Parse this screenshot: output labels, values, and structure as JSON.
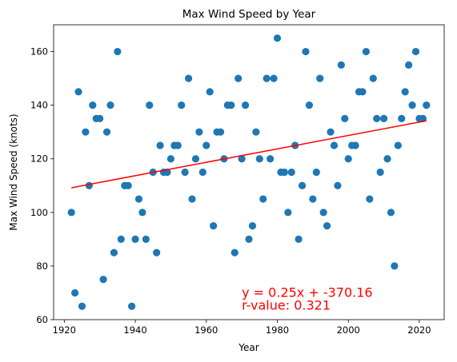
{
  "chart_data": {
    "type": "scatter",
    "title": "Max Wind Speed by Year",
    "xlabel": "Year",
    "ylabel": "Max Wind Speed (knots)",
    "xlim": [
      1917,
      2027
    ],
    "ylim": [
      60,
      170
    ],
    "xticks": [
      1920,
      1940,
      1960,
      1980,
      2000,
      2020
    ],
    "yticks": [
      60,
      80,
      100,
      120,
      140,
      160
    ],
    "grid": false,
    "point_color": "#1f77b4",
    "line_color": "#ff0000",
    "points": [
      [
        1922,
        100
      ],
      [
        1923,
        70
      ],
      [
        1924,
        145
      ],
      [
        1925,
        65
      ],
      [
        1926,
        130
      ],
      [
        1927,
        110
      ],
      [
        1928,
        140
      ],
      [
        1929,
        135
      ],
      [
        1930,
        135
      ],
      [
        1931,
        75
      ],
      [
        1932,
        130
      ],
      [
        1933,
        140
      ],
      [
        1934,
        85
      ],
      [
        1935,
        160
      ],
      [
        1936,
        90
      ],
      [
        1937,
        110
      ],
      [
        1938,
        110
      ],
      [
        1939,
        65
      ],
      [
        1940,
        90
      ],
      [
        1941,
        105
      ],
      [
        1942,
        100
      ],
      [
        1943,
        90
      ],
      [
        1944,
        140
      ],
      [
        1945,
        115
      ],
      [
        1946,
        85
      ],
      [
        1947,
        125
      ],
      [
        1948,
        115
      ],
      [
        1949,
        115
      ],
      [
        1950,
        120
      ],
      [
        1951,
        125
      ],
      [
        1952,
        125
      ],
      [
        1953,
        140
      ],
      [
        1954,
        115
      ],
      [
        1955,
        150
      ],
      [
        1956,
        105
      ],
      [
        1957,
        120
      ],
      [
        1958,
        130
      ],
      [
        1959,
        115
      ],
      [
        1960,
        125
      ],
      [
        1961,
        145
      ],
      [
        1962,
        95
      ],
      [
        1963,
        130
      ],
      [
        1964,
        130
      ],
      [
        1965,
        120
      ],
      [
        1966,
        140
      ],
      [
        1967,
        140
      ],
      [
        1968,
        85
      ],
      [
        1969,
        150
      ],
      [
        1970,
        120
      ],
      [
        1971,
        140
      ],
      [
        1972,
        90
      ],
      [
        1973,
        95
      ],
      [
        1974,
        130
      ],
      [
        1975,
        120
      ],
      [
        1976,
        105
      ],
      [
        1977,
        150
      ],
      [
        1978,
        120
      ],
      [
        1979,
        150
      ],
      [
        1980,
        165
      ],
      [
        1981,
        115
      ],
      [
        1982,
        115
      ],
      [
        1983,
        100
      ],
      [
        1984,
        115
      ],
      [
        1985,
        125
      ],
      [
        1986,
        90
      ],
      [
        1987,
        110
      ],
      [
        1988,
        160
      ],
      [
        1989,
        140
      ],
      [
        1990,
        105
      ],
      [
        1991,
        115
      ],
      [
        1992,
        150
      ],
      [
        1993,
        100
      ],
      [
        1994,
        95
      ],
      [
        1995,
        130
      ],
      [
        1996,
        125
      ],
      [
        1997,
        110
      ],
      [
        1998,
        155
      ],
      [
        1999,
        135
      ],
      [
        2000,
        120
      ],
      [
        2001,
        125
      ],
      [
        2002,
        125
      ],
      [
        2003,
        145
      ],
      [
        2004,
        145
      ],
      [
        2005,
        160
      ],
      [
        2006,
        105
      ],
      [
        2007,
        150
      ],
      [
        2008,
        135
      ],
      [
        2009,
        115
      ],
      [
        2010,
        135
      ],
      [
        2011,
        120
      ],
      [
        2012,
        100
      ],
      [
        2013,
        80
      ],
      [
        2014,
        125
      ],
      [
        2015,
        135
      ],
      [
        2016,
        145
      ],
      [
        2017,
        155
      ],
      [
        2018,
        140
      ],
      [
        2019,
        160
      ],
      [
        2020,
        135
      ],
      [
        2021,
        135
      ],
      [
        2022,
        140
      ]
    ],
    "regression": {
      "x": [
        1922,
        2022
      ],
      "y": [
        109.2,
        134.2
      ]
    },
    "annotations": [
      {
        "text": "y = 0.25x + -370.16",
        "x": 1970,
        "y": 68.5,
        "color": "#ff0000"
      },
      {
        "text": "r-value: 0.321",
        "x": 1970,
        "y": 63.8,
        "color": "#ff0000"
      }
    ]
  }
}
